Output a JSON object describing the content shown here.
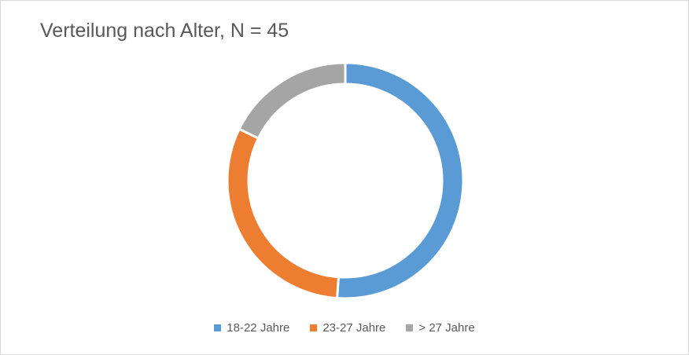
{
  "chart_data": {
    "type": "pie",
    "variant": "donut",
    "title": "Verteilung nach Alter, N = 45",
    "categories": [
      "18-22 Jahre",
      "23-27 Jahre",
      "> 27 Jahre"
    ],
    "values": [
      23,
      14,
      8
    ],
    "colors": [
      "#5b9bd5",
      "#ed7d31",
      "#a5a5a5"
    ],
    "legend_position": "bottom"
  }
}
